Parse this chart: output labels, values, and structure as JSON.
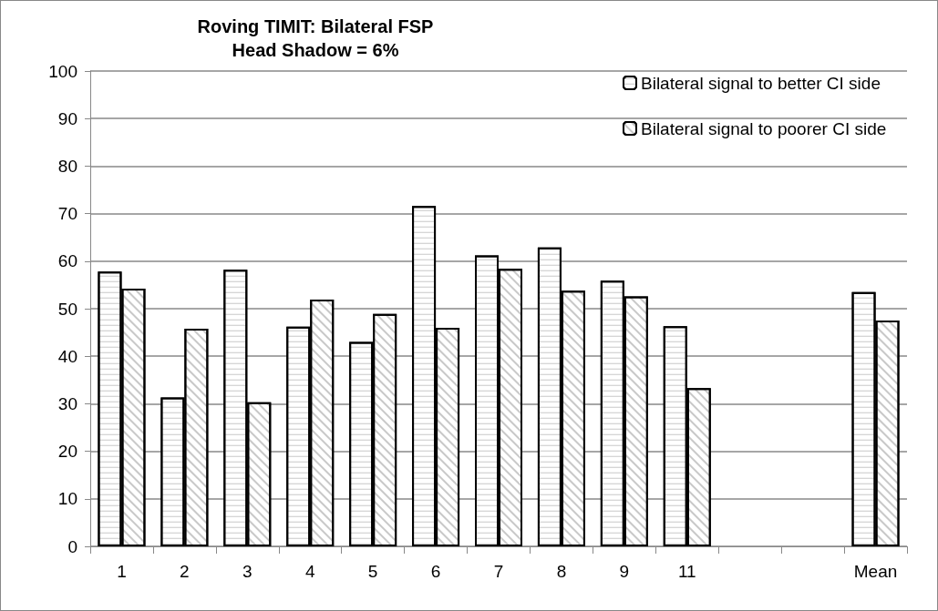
{
  "chart_data": {
    "type": "bar",
    "title": "Roving TIMIT: Bilateral FSP\nHead Shadow = 6%",
    "categories": [
      "1",
      "2",
      "3",
      "4",
      "5",
      "6",
      "7",
      "8",
      "9",
      "11",
      null,
      null,
      "Mean"
    ],
    "series": [
      {
        "name": "Bilateral signal to better CI side",
        "color": "#ffffff",
        "values": [
          57.8,
          31.3,
          58.2,
          46.2,
          43.0,
          71.6,
          61.2,
          62.9,
          55.9,
          46.3,
          null,
          null,
          53.5
        ]
      },
      {
        "name": "Bilateral signal to poorer CI side",
        "color": "#ffffff",
        "values": [
          54.2,
          45.8,
          30.3,
          51.9,
          48.9,
          46.0,
          58.4,
          53.8,
          52.6,
          33.3,
          null,
          null,
          47.5
        ]
      }
    ],
    "ylim": [
      0,
      100
    ],
    "yticks": [
      0,
      10,
      20,
      30,
      40,
      50,
      60,
      70,
      80,
      90,
      100
    ],
    "grid": "y",
    "legend": "top right"
  }
}
